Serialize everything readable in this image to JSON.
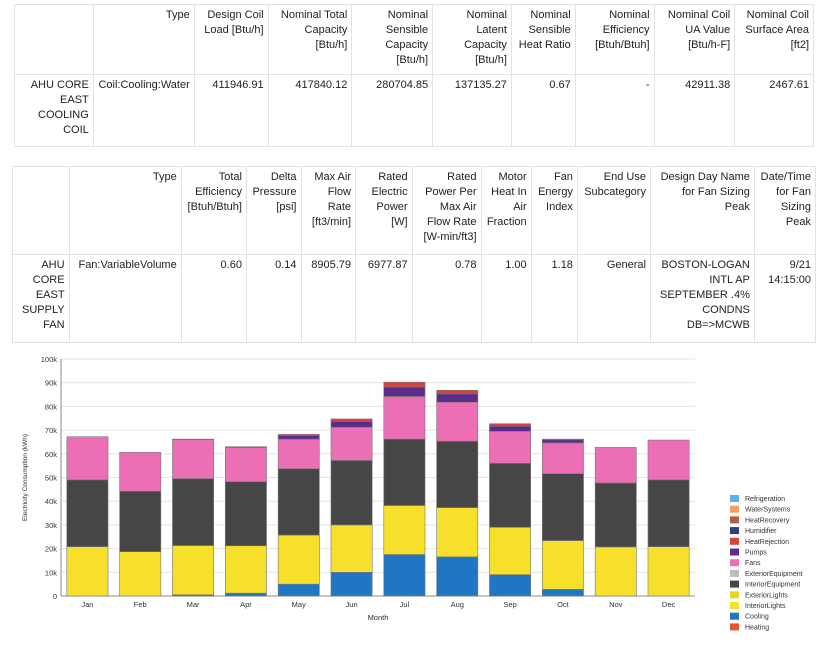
{
  "coil_table": {
    "headers": [
      "",
      "Type",
      "Design Coil Load [Btu/h]",
      "Nominal Total Capacity [Btu/h]",
      "Nominal Sensible Capacity [Btu/h]",
      "Nominal Latent Capacity [Btu/h]",
      "Nominal Sensible Heat Ratio",
      "Nominal Efficiency [Btuh/Btuh]",
      "Nominal Coil UA Value [Btu/h-F]",
      "Nominal Coil Surface Area [ft2]"
    ],
    "row": [
      "AHU CORE EAST COOLING COIL",
      "Coil:Cooling:Water",
      "411946.91",
      "417840.12",
      "280704.85",
      "137135.27",
      "0.67",
      "-",
      "42911.38",
      "2467.61"
    ]
  },
  "fan_table": {
    "headers": [
      "",
      "Type",
      "Total Efficiency [Btuh/Btuh]",
      "Delta Pressure [psi]",
      "Max Air Flow Rate [ft3/min]",
      "Rated Electric Power [W]",
      "Rated Power Per Max Air Flow Rate [W-min/ft3]",
      "Motor Heat In Air Fraction",
      "Fan Energy Index",
      "End Use Subcategory",
      "Design Day Name for Fan Sizing Peak",
      "Date/Time for Fan Sizing Peak"
    ],
    "row": [
      "AHU CORE EAST SUPPLY FAN",
      "Fan:VariableVolume",
      "0.60",
      "0.14",
      "8905.79",
      "6977.87",
      "0.78",
      "1.00",
      "1.18",
      "General",
      "BOSTON-LOGAN INTL AP SEPTEMBER .4% CONDNS DB=>MCWB",
      "9/21 14:15:00"
    ]
  },
  "chart_data": {
    "type": "bar",
    "stacked": true,
    "title": "",
    "xlabel": "Month",
    "ylabel": "Electricity Consumption (kWh)",
    "ylim": [
      0,
      100000
    ],
    "yticks": [
      "0",
      "10k",
      "20k",
      "30k",
      "40k",
      "50k",
      "60k",
      "70k",
      "80k",
      "90k",
      "100k"
    ],
    "categories": [
      "Jan",
      "Feb",
      "Mar",
      "Apr",
      "May",
      "Jun",
      "Jul",
      "Aug",
      "Sep",
      "Oct",
      "Nov",
      "Dec"
    ],
    "legend_position": "right",
    "series": [
      {
        "name": "Heating",
        "color": "#e8542e",
        "values": [
          0,
          0,
          0,
          0,
          0,
          0,
          0,
          0,
          0,
          0,
          0,
          0
        ]
      },
      {
        "name": "Cooling",
        "color": "#1f77c4",
        "values": [
          0,
          0,
          500,
          1200,
          5000,
          10000,
          17500,
          16500,
          9000,
          2800,
          0,
          0
        ]
      },
      {
        "name": "InteriorLights",
        "color": "#f6e02b",
        "values": [
          20800,
          18700,
          20800,
          20000,
          20700,
          20000,
          20700,
          20800,
          20000,
          20600,
          20700,
          20800
        ]
      },
      {
        "name": "ExteriorLights",
        "color": "#e6d22a",
        "values": [
          0,
          0,
          0,
          0,
          0,
          0,
          0,
          0,
          0,
          0,
          0,
          0
        ]
      },
      {
        "name": "InteriorEquipment",
        "color": "#464646",
        "values": [
          28200,
          25500,
          28200,
          27000,
          28000,
          27200,
          28000,
          28000,
          27000,
          28200,
          27000,
          28200
        ]
      },
      {
        "name": "ExteriorEquipment",
        "color": "#bdbdbd",
        "values": [
          0,
          0,
          0,
          0,
          0,
          0,
          0,
          0,
          0,
          0,
          0,
          0
        ]
      },
      {
        "name": "Fans",
        "color": "#ec6fb5",
        "values": [
          18200,
          16400,
          16500,
          14500,
          12500,
          14000,
          18000,
          16500,
          13500,
          13000,
          15000,
          16800
        ]
      },
      {
        "name": "Pumps",
        "color": "#5b2c8a",
        "values": [
          0,
          0,
          200,
          300,
          1500,
          2500,
          4000,
          3500,
          2200,
          1300,
          0,
          0
        ]
      },
      {
        "name": "HeatRejection",
        "color": "#d94040",
        "values": [
          0,
          0,
          0,
          0,
          500,
          1000,
          2000,
          1500,
          1000,
          300,
          0,
          0
        ]
      },
      {
        "name": "Humidifier",
        "color": "#2e3f7a",
        "values": [
          0,
          0,
          0,
          0,
          0,
          0,
          0,
          0,
          0,
          0,
          0,
          0
        ]
      },
      {
        "name": "HeatRecovery",
        "color": "#b85c48",
        "values": [
          0,
          0,
          0,
          0,
          0,
          0,
          0,
          0,
          0,
          0,
          0,
          0
        ]
      },
      {
        "name": "WaterSystems",
        "color": "#f0a35a",
        "values": [
          0,
          0,
          0,
          0,
          0,
          0,
          0,
          0,
          0,
          0,
          0,
          0
        ]
      },
      {
        "name": "Refrigeration",
        "color": "#56b4e9",
        "values": [
          0,
          0,
          0,
          0,
          0,
          0,
          0,
          0,
          0,
          0,
          0,
          0
        ]
      }
    ],
    "legend_order": [
      "Refrigeration",
      "WaterSystems",
      "HeatRecovery",
      "Humidifier",
      "HeatRejection",
      "Pumps",
      "Fans",
      "ExteriorEquipment",
      "InteriorEquipment",
      "ExteriorLights",
      "InteriorLights",
      "Cooling",
      "Heating"
    ]
  }
}
